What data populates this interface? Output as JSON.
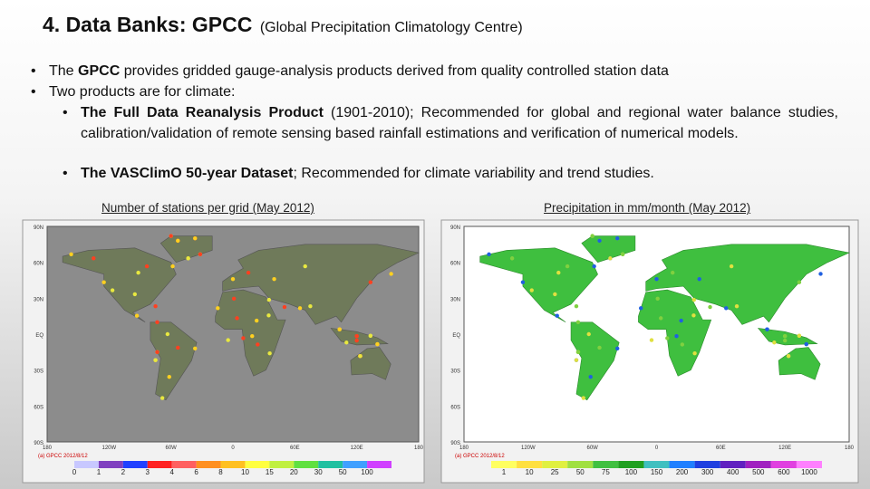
{
  "title": {
    "main": "4. Data Banks: GPCC",
    "sub": "(Global Precipitation Climatology Centre)"
  },
  "bullets": [
    {
      "level": 0,
      "parts": [
        {
          "text": "The ",
          "bold": false
        },
        {
          "text": "GPCC",
          "bold": true
        },
        {
          "text": " provides gridded gauge-analysis products derived from quality controlled station data",
          "bold": false
        }
      ]
    },
    {
      "level": 0,
      "parts": [
        {
          "text": "Two products are for climate:",
          "bold": false
        }
      ]
    },
    {
      "level": 1,
      "parts": [
        {
          "text": "The Full Data Reanalysis Product",
          "bold": true
        },
        {
          "text": " (1901-2010); Recommended for global and regional water balance studies, calibration/validation of remote sensing based rainfall estimations and verification of numerical models.",
          "bold": false
        }
      ]
    },
    {
      "level": 1,
      "parts": [
        {
          "text": "The VASClimO 50-year Dataset",
          "bold": true
        },
        {
          "text": "; Recommended for climate variability and trend studies.",
          "bold": false
        }
      ]
    }
  ],
  "figures": [
    {
      "caption": "Number of stations per grid (May 2012)",
      "background": "#8c8c8c",
      "land": "#6f7a5a",
      "y_labels": [
        "90N",
        "60N",
        "30N",
        "EQ",
        "30S",
        "60S",
        "90S"
      ],
      "x_labels": [
        "180",
        "120W",
        "60W",
        "0",
        "60E",
        "120E",
        "180"
      ],
      "stamp": "(a) GPCC 2012/8/12",
      "legend_labels": [
        "0",
        "1",
        "2",
        "3",
        "4",
        "6",
        "8",
        "10",
        "15",
        "20",
        "30",
        "50",
        "100"
      ],
      "legend_colors": [
        "#c8c8ff",
        "#8040c0",
        "#2040ff",
        "#ff2020",
        "#ff6060",
        "#ff9020",
        "#ffc020",
        "#ffff40",
        "#c0f040",
        "#60e040",
        "#20c0a0",
        "#40a0ff",
        "#d040ff"
      ]
    },
    {
      "caption": "Precipitation in mm/month (May 2012)",
      "background": "#ffffff",
      "land": "#3fbf3f",
      "y_labels": [
        "90N",
        "60N",
        "30N",
        "EQ",
        "30S",
        "60S",
        "90S"
      ],
      "x_labels": [
        "180",
        "120W",
        "60W",
        "0",
        "60E",
        "120E",
        "180"
      ],
      "stamp": "(a) GPCC 2012/8/12",
      "legend_labels": [
        "1",
        "10",
        "25",
        "50",
        "75",
        "100",
        "150",
        "200",
        "300",
        "400",
        "500",
        "600",
        "1000"
      ],
      "legend_colors": [
        "#ffff60",
        "#ffe040",
        "#e0f040",
        "#a0e040",
        "#40c040",
        "#20a020",
        "#40c0c0",
        "#2080ff",
        "#2040e0",
        "#6020c0",
        "#a020c0",
        "#e040e0",
        "#ff80ff"
      ]
    }
  ]
}
